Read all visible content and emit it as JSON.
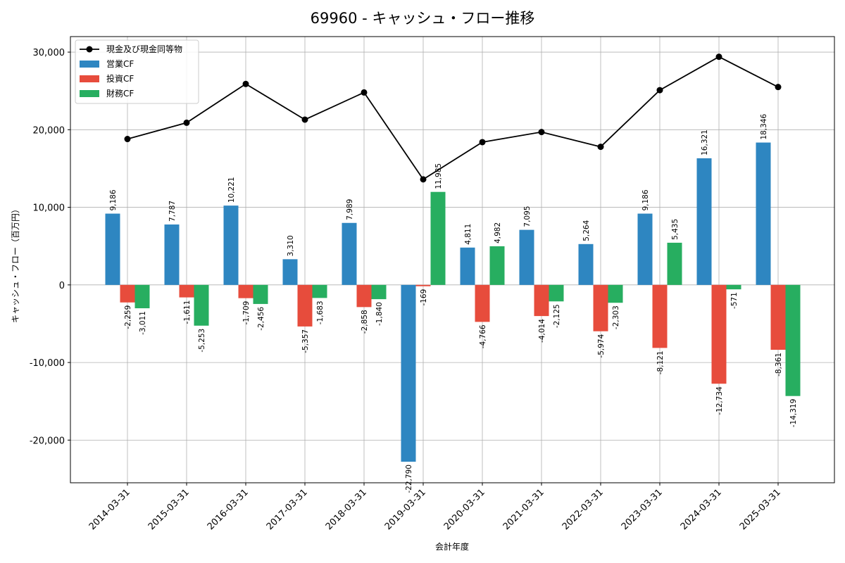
{
  "chart_data": {
    "type": "bar",
    "title": "69960 - キャッシュ・フロー推移",
    "xlabel": "会計年度",
    "ylabel": "キャッシュ・フロー（百万円）",
    "ylim": [
      -25500,
      32000
    ],
    "yticks": [
      -20000,
      -10000,
      0,
      10000,
      20000,
      30000
    ],
    "ytick_labels": [
      "-20,000",
      "-10,000",
      "0",
      "10,000",
      "20,000",
      "30,000"
    ],
    "grid": true,
    "legend_position": "top-left",
    "categories": [
      "2014-03-31",
      "2015-03-31",
      "2016-03-31",
      "2017-03-31",
      "2018-03-31",
      "2019-03-31",
      "2020-03-31",
      "2021-03-31",
      "2022-03-31",
      "2023-03-31",
      "2024-03-31",
      "2025-03-31"
    ],
    "series": [
      {
        "name": "営業CF",
        "kind": "bar",
        "color": "#2e86c1",
        "values": [
          9186,
          7787,
          10221,
          3310,
          7989,
          -22790,
          4811,
          7095,
          5264,
          9186,
          16321,
          18346
        ],
        "labels": [
          "9,186",
          "7,787",
          "10,221",
          "3,310",
          "7,989",
          "-22,790",
          "4,811",
          "7,095",
          "5,264",
          "9,186",
          "16,321",
          "18,346"
        ]
      },
      {
        "name": "投資CF",
        "kind": "bar",
        "color": "#e74c3c",
        "values": [
          -2259,
          -1611,
          -1709,
          -5357,
          -2858,
          -169,
          -4766,
          -4014,
          -5974,
          -8121,
          -12734,
          -8361
        ],
        "labels": [
          "-2,259",
          "-1,611",
          "-1,709",
          "-5,357",
          "-2,858",
          "-169",
          "-4,766",
          "-4,014",
          "-5,974",
          "-8,121",
          "-12,734",
          "-8,361"
        ]
      },
      {
        "name": "財務CF",
        "kind": "bar",
        "color": "#27ae60",
        "values": [
          -3011,
          -5253,
          -2456,
          -1683,
          -1840,
          11985,
          4982,
          -2125,
          -2303,
          5435,
          -571,
          -14319
        ],
        "labels": [
          "-3,011",
          "-5,253",
          "-2,456",
          "-1,683",
          "-1,840",
          "11,985",
          "4,982",
          "-2,125",
          "-2,303",
          "5,435",
          "-571",
          "-14,319"
        ]
      },
      {
        "name": "現金及び現金同等物",
        "kind": "line",
        "color": "#000000",
        "values": [
          18800,
          20900,
          25900,
          21300,
          24800,
          13600,
          18400,
          19700,
          17800,
          25100,
          29400,
          25500
        ]
      }
    ]
  }
}
